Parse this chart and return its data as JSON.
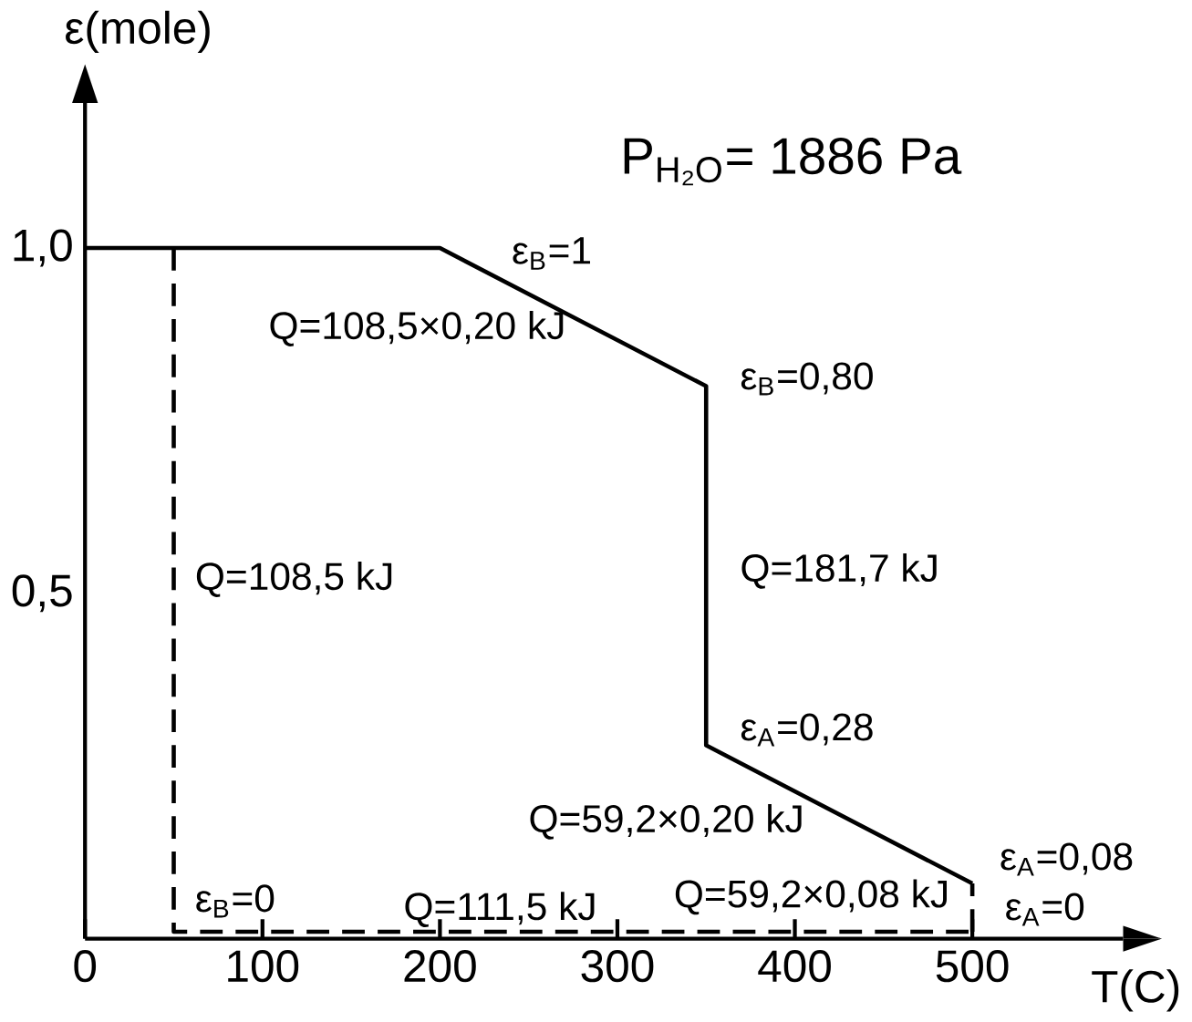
{
  "chart_data": {
    "type": "line",
    "title": "P$_{H₂O}$= 1886 Pa",
    "xlabel": "T(C)",
    "ylabel": "ε(mole)",
    "xlim": [
      0,
      585
    ],
    "ylim": [
      0,
      1.21
    ],
    "xticks": [
      0,
      100,
      200,
      300,
      400,
      500
    ],
    "yticks": [
      {
        "value": 0.5,
        "label": "0,5"
      },
      {
        "value": 1.0,
        "label": "1,0"
      }
    ],
    "marker": "none",
    "grid": false,
    "series": [
      {
        "color": "#000000",
        "line_style": "solid",
        "x": [
          0,
          200,
          350,
          350,
          500
        ],
        "values": [
          1.0,
          1.0,
          0.8,
          0.28,
          0.08
        ]
      },
      {
        "color": "#000000",
        "line_style": "dashed",
        "x": [
          50,
          50,
          500
        ],
        "values": [
          1.0,
          0.01,
          0.01
        ]
      },
      {
        "color": "#000000",
        "line_style": "dashed",
        "x": [
          500,
          500
        ],
        "values": [
          0.01,
          0.08
        ]
      }
    ],
    "annotations": [
      "ε$_{B}$=1",
      "Q=108,5×0,20 kJ",
      "ε$_{B}$=0,80",
      "Q=108,5 kJ",
      "Q=181,7 kJ",
      "ε$_{A}$=0,28",
      "Q=59,2×0,20 kJ",
      "ε$_{A}$=0,08",
      "Q=59,2×0,08 kJ",
      "ε$_{B}$=0",
      "Q=111,5 kJ",
      "ε$_{A}$=0"
    ]
  }
}
